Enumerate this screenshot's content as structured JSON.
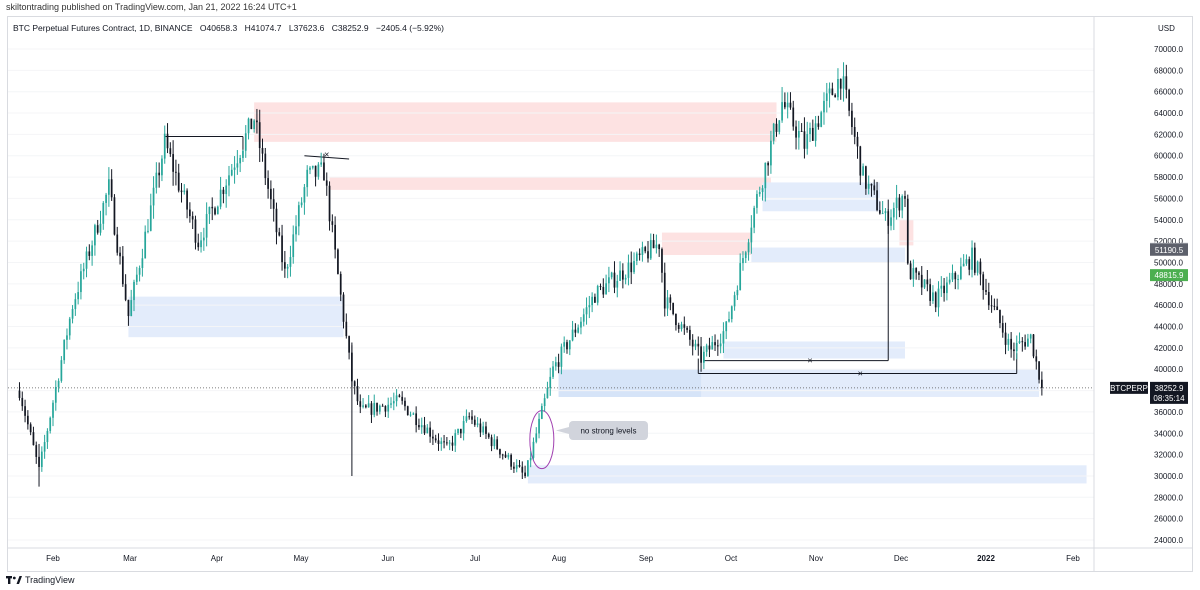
{
  "publisher": "skiltontrading published on TradingView.com, Jan 21, 2022 16:24 UTC+1",
  "symbol_bar": {
    "name": "BTC Perpetual Futures Contract, 1D, BINANCE",
    "open": "O40658.3",
    "high": "H41074.7",
    "low": "L37623.6",
    "close": "C38252.9",
    "change": "−2405.4 (−5.92%)"
  },
  "footer": {
    "logo": "TradingView"
  },
  "colors": {
    "up": "#26a69a",
    "down": "#131722",
    "supply_zone": "#fde2e2",
    "demand_zone": "#e3ecfb",
    "last_price": "#131722",
    "tag_gray": "#8a8e99",
    "tag_green": "#4caf50",
    "circle": "#a03fb0"
  },
  "chart_data": {
    "type": "candlestick",
    "currency_label": "USD",
    "y_axis": {
      "min": 23000,
      "max": 73000,
      "ticks": [
        24000,
        26000,
        28000,
        30000,
        32000,
        34000,
        36000,
        38000,
        40000,
        42000,
        44000,
        46000,
        48000,
        50000,
        52000,
        54000,
        56000,
        58000,
        60000,
        62000,
        64000,
        66000,
        68000,
        70000
      ]
    },
    "x_axis": {
      "labels": [
        "Feb",
        "Mar",
        "Apr",
        "May",
        "Jun",
        "Jul",
        "Aug",
        "Sep",
        "Oct",
        "Nov",
        "Dec",
        "2022",
        "Feb"
      ],
      "bold_label": "2022"
    },
    "price_tags": [
      {
        "label": "51275.9",
        "value": 51275.9,
        "color": "gray"
      },
      {
        "label": "51190.5",
        "value": 51190.5,
        "color": "darkgray"
      },
      {
        "label": "48815.9",
        "value": 48815.9,
        "color": "green"
      }
    ],
    "last_price": {
      "symbol": "BTCPERP",
      "value": "38252.9",
      "countdown": "08:35:14"
    },
    "annotation": "no strong levels",
    "anchors": [
      {
        "date": "2021-01-20",
        "price": 38000
      },
      {
        "date": "2021-01-27",
        "price": 30500
      },
      {
        "date": "2021-02-08",
        "price": 46000
      },
      {
        "date": "2021-02-21",
        "price": 57000
      },
      {
        "date": "2021-02-28",
        "price": 45000
      },
      {
        "date": "2021-03-13",
        "price": 61200
      },
      {
        "date": "2021-03-25",
        "price": 52000
      },
      {
        "date": "2021-04-14",
        "price": 63500
      },
      {
        "date": "2021-04-25",
        "price": 49000
      },
      {
        "date": "2021-05-03",
        "price": 58000
      },
      {
        "date": "2021-05-09",
        "price": 58500
      },
      {
        "date": "2021-05-19",
        "price": 39000
      },
      {
        "date": "2021-05-22",
        "price": 36000
      },
      {
        "date": "2021-06-05",
        "price": 37000
      },
      {
        "date": "2021-06-22",
        "price": 32500
      },
      {
        "date": "2021-06-30",
        "price": 35500
      },
      {
        "date": "2021-07-20",
        "price": 29900
      },
      {
        "date": "2021-07-30",
        "price": 40000
      },
      {
        "date": "2021-08-14",
        "price": 47000
      },
      {
        "date": "2021-09-06",
        "price": 51800
      },
      {
        "date": "2021-09-08",
        "price": 46500
      },
      {
        "date": "2021-09-21",
        "price": 41000
      },
      {
        "date": "2021-09-30",
        "price": 43800
      },
      {
        "date": "2021-10-10",
        "price": 55000
      },
      {
        "date": "2021-10-20",
        "price": 65000
      },
      {
        "date": "2021-10-28",
        "price": 61000
      },
      {
        "date": "2021-11-10",
        "price": 67500
      },
      {
        "date": "2021-11-18",
        "price": 58000
      },
      {
        "date": "2021-11-26",
        "price": 54000
      },
      {
        "date": "2021-12-03",
        "price": 56500
      },
      {
        "date": "2021-12-04",
        "price": 49300
      },
      {
        "date": "2021-12-14",
        "price": 46500
      },
      {
        "date": "2021-12-27",
        "price": 50500
      },
      {
        "date": "2022-01-10",
        "price": 41800
      },
      {
        "date": "2022-01-17",
        "price": 43000
      },
      {
        "date": "2022-01-21",
        "price": 38252.9
      }
    ]
  }
}
